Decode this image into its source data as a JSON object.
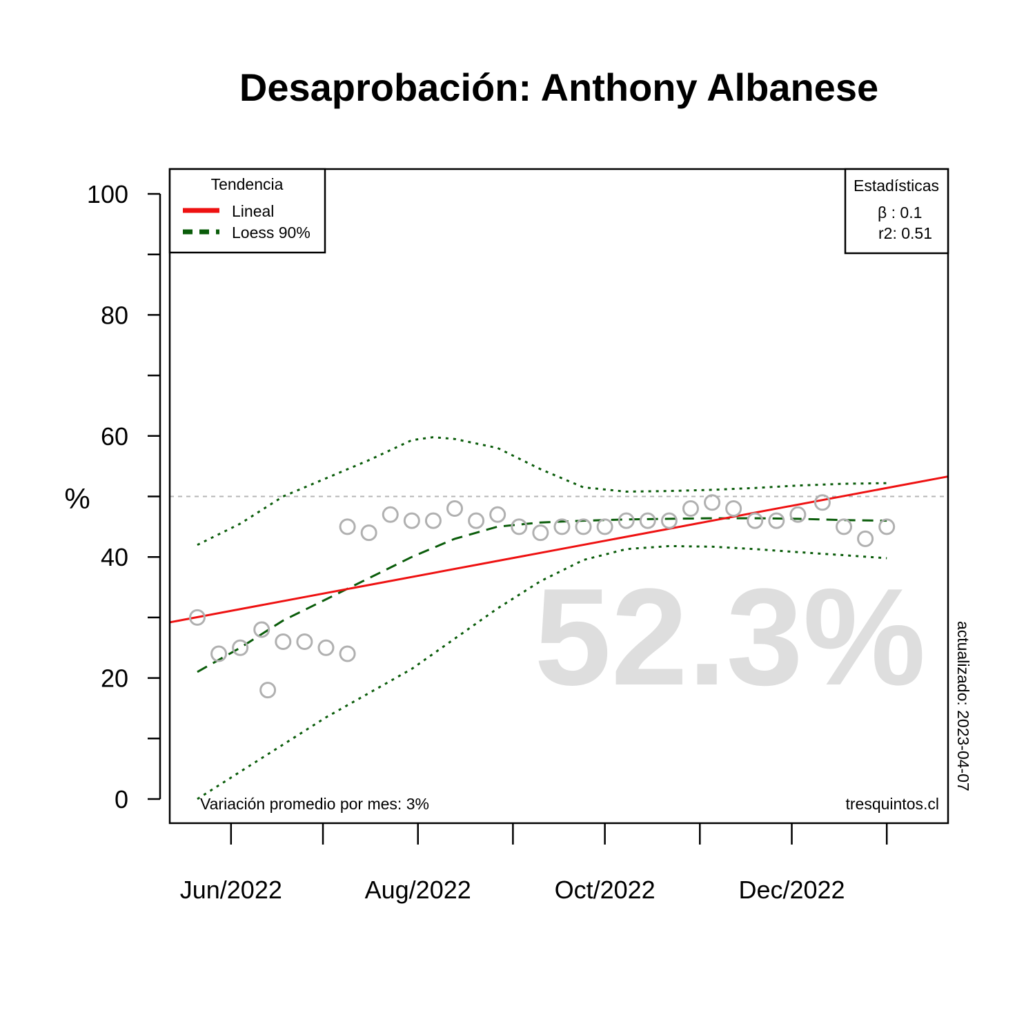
{
  "chart_data": {
    "type": "scatter",
    "title": "Desaprobación: Anthony Albanese",
    "ylabel": "%",
    "ylim": [
      0,
      100
    ],
    "yticks": [
      0,
      20,
      40,
      60,
      80,
      100
    ],
    "x_tick_labels": [
      "Jun/2022",
      "Aug/2022",
      "Oct/2022",
      "Dec/2022"
    ],
    "x_tick_dates": [
      "2022-06-01",
      "2022-07-01",
      "2022-08-01",
      "2022-09-01",
      "2022-10-01",
      "2022-11-01",
      "2022-12-01",
      "2023-01-01"
    ],
    "x_labeled_dates": [
      "2022-06-01",
      "2022-08-01",
      "2022-10-01",
      "2022-12-01"
    ],
    "xlim": [
      "2022-05-12",
      "2023-01-21"
    ],
    "reference_line": 50,
    "big_value": "52.3%",
    "points": [
      {
        "x": "2022-05-21",
        "y": 30
      },
      {
        "x": "2022-05-28",
        "y": 24
      },
      {
        "x": "2022-06-04",
        "y": 25
      },
      {
        "x": "2022-06-11",
        "y": 28
      },
      {
        "x": "2022-06-13",
        "y": 18
      },
      {
        "x": "2022-06-18",
        "y": 26
      },
      {
        "x": "2022-06-25",
        "y": 26
      },
      {
        "x": "2022-07-02",
        "y": 25
      },
      {
        "x": "2022-07-09",
        "y": 24
      },
      {
        "x": "2022-07-09",
        "y": 45
      },
      {
        "x": "2022-07-16",
        "y": 44
      },
      {
        "x": "2022-07-23",
        "y": 47
      },
      {
        "x": "2022-07-30",
        "y": 46
      },
      {
        "x": "2022-08-06",
        "y": 46
      },
      {
        "x": "2022-08-13",
        "y": 48
      },
      {
        "x": "2022-08-20",
        "y": 46
      },
      {
        "x": "2022-08-27",
        "y": 47
      },
      {
        "x": "2022-09-03",
        "y": 45
      },
      {
        "x": "2022-09-10",
        "y": 44
      },
      {
        "x": "2022-09-17",
        "y": 45
      },
      {
        "x": "2022-09-24",
        "y": 45
      },
      {
        "x": "2022-10-01",
        "y": 45
      },
      {
        "x": "2022-10-08",
        "y": 46
      },
      {
        "x": "2022-10-15",
        "y": 46
      },
      {
        "x": "2022-10-22",
        "y": 46
      },
      {
        "x": "2022-10-29",
        "y": 48
      },
      {
        "x": "2022-11-05",
        "y": 49
      },
      {
        "x": "2022-11-12",
        "y": 48
      },
      {
        "x": "2022-11-19",
        "y": 46
      },
      {
        "x": "2022-11-26",
        "y": 46
      },
      {
        "x": "2022-12-03",
        "y": 47
      },
      {
        "x": "2022-12-11",
        "y": 49
      },
      {
        "x": "2022-12-18",
        "y": 45
      },
      {
        "x": "2022-12-25",
        "y": 43
      },
      {
        "x": "2023-01-01",
        "y": 45
      }
    ],
    "linear_trend": {
      "color": "#ee1111",
      "points": [
        {
          "x": "2022-05-12",
          "y": 29.2
        },
        {
          "x": "2023-01-21",
          "y": 53.3
        }
      ]
    },
    "loess_fit": {
      "color": "#0a5c0a",
      "points": [
        {
          "x": "2022-05-21",
          "y": 21
        },
        {
          "x": "2022-06-04",
          "y": 25
        },
        {
          "x": "2022-06-18",
          "y": 29.5
        },
        {
          "x": "2022-07-02",
          "y": 33
        },
        {
          "x": "2022-07-16",
          "y": 36.5
        },
        {
          "x": "2022-07-30",
          "y": 40
        },
        {
          "x": "2022-08-13",
          "y": 43
        },
        {
          "x": "2022-08-27",
          "y": 45
        },
        {
          "x": "2022-09-10",
          "y": 45.7
        },
        {
          "x": "2022-09-24",
          "y": 46
        },
        {
          "x": "2022-10-08",
          "y": 46.2
        },
        {
          "x": "2022-10-22",
          "y": 46.3
        },
        {
          "x": "2022-11-05",
          "y": 46.4
        },
        {
          "x": "2022-11-19",
          "y": 46.4
        },
        {
          "x": "2022-12-03",
          "y": 46.3
        },
        {
          "x": "2022-12-18",
          "y": 46.1
        },
        {
          "x": "2023-01-01",
          "y": 46
        }
      ]
    },
    "loess_upper": {
      "points": [
        {
          "x": "2022-05-21",
          "y": 42
        },
        {
          "x": "2022-06-04",
          "y": 45.5
        },
        {
          "x": "2022-06-18",
          "y": 50
        },
        {
          "x": "2022-07-02",
          "y": 53
        },
        {
          "x": "2022-07-16",
          "y": 56
        },
        {
          "x": "2022-07-30",
          "y": 59.3
        },
        {
          "x": "2022-08-06",
          "y": 59.8
        },
        {
          "x": "2022-08-13",
          "y": 59.5
        },
        {
          "x": "2022-08-27",
          "y": 58
        },
        {
          "x": "2022-09-10",
          "y": 54.5
        },
        {
          "x": "2022-09-24",
          "y": 51.5
        },
        {
          "x": "2022-10-08",
          "y": 50.8
        },
        {
          "x": "2022-10-22",
          "y": 50.9
        },
        {
          "x": "2022-11-05",
          "y": 51.1
        },
        {
          "x": "2022-11-19",
          "y": 51.4
        },
        {
          "x": "2022-12-03",
          "y": 51.8
        },
        {
          "x": "2022-12-18",
          "y": 52.1
        },
        {
          "x": "2023-01-01",
          "y": 52.2
        }
      ]
    },
    "loess_lower": {
      "points": [
        {
          "x": "2022-05-21",
          "y": 0
        },
        {
          "x": "2022-06-04",
          "y": 4.5
        },
        {
          "x": "2022-06-18",
          "y": 9
        },
        {
          "x": "2022-07-02",
          "y": 13.5
        },
        {
          "x": "2022-07-16",
          "y": 17.5
        },
        {
          "x": "2022-07-30",
          "y": 21.5
        },
        {
          "x": "2022-08-13",
          "y": 26.5
        },
        {
          "x": "2022-08-27",
          "y": 31.5
        },
        {
          "x": "2022-09-10",
          "y": 36
        },
        {
          "x": "2022-09-24",
          "y": 39.5
        },
        {
          "x": "2022-10-08",
          "y": 41.3
        },
        {
          "x": "2022-10-22",
          "y": 41.8
        },
        {
          "x": "2022-11-05",
          "y": 41.7
        },
        {
          "x": "2022-11-19",
          "y": 41.3
        },
        {
          "x": "2022-12-03",
          "y": 40.8
        },
        {
          "x": "2022-12-18",
          "y": 40.3
        },
        {
          "x": "2023-01-01",
          "y": 39.8
        }
      ]
    },
    "legend": {
      "position": "top-left",
      "title": "Tendencia",
      "entries": [
        "Lineal",
        "Loess 90%"
      ]
    },
    "stats": {
      "position": "top-right",
      "title": "Estadísticas",
      "lines": [
        "β : 0.1",
        "r2: 0.51"
      ]
    },
    "annotations": {
      "variation": "Variación promedio por mes: 3%",
      "source": "tresquintos.cl",
      "updated": "actualizado: 2023-04-07"
    },
    "colors": {
      "points": "#b0b0b0",
      "reference": "#b5b5b5",
      "big_value": "#dedede"
    }
  }
}
